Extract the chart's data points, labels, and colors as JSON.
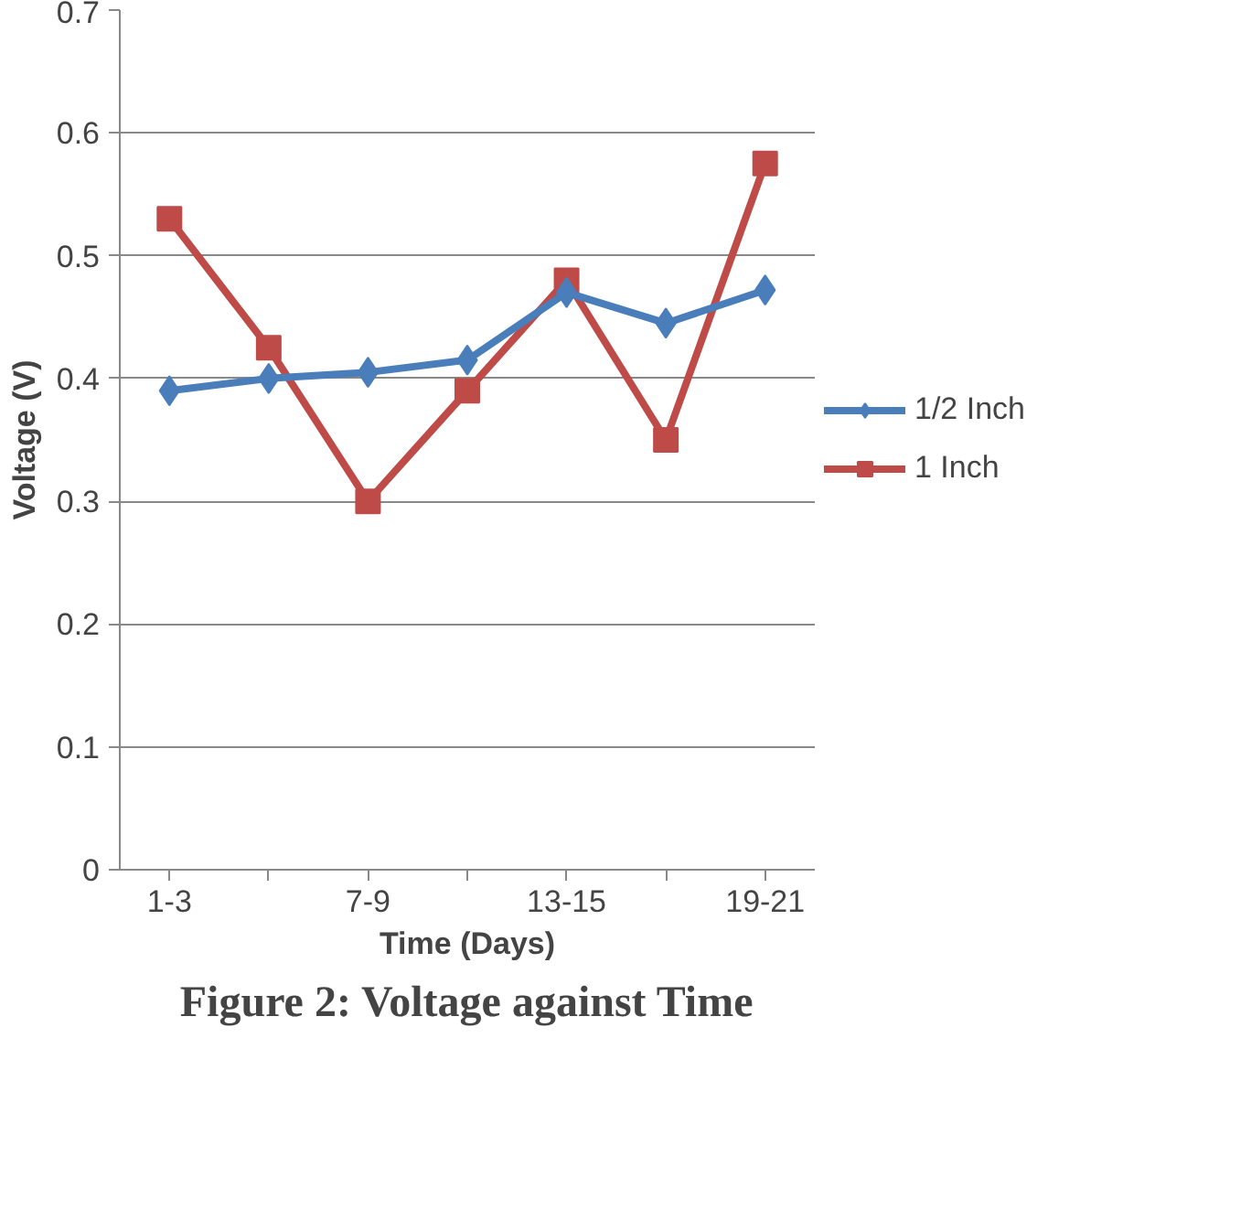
{
  "chart_data": {
    "type": "line",
    "title": "Figure 2: Voltage against Time",
    "xlabel": "Time (Days)",
    "ylabel": "Voltage (V)",
    "categories": [
      "1-3",
      null,
      "7-9",
      null,
      "13-15",
      null,
      "19-21"
    ],
    "series": [
      {
        "name": "1/2 Inch",
        "color": "#4a7ebb",
        "marker": "diamond",
        "values": [
          0.39,
          0.4,
          0.405,
          0.415,
          0.47,
          0.445,
          0.472
        ]
      },
      {
        "name": "1 Inch",
        "color": "#be4b48",
        "marker": "square",
        "values": [
          0.53,
          0.425,
          0.3,
          0.39,
          0.48,
          0.35,
          0.575
        ]
      }
    ],
    "ylim": [
      0,
      0.7
    ],
    "yticks": [
      0,
      0.1,
      0.2,
      0.3,
      0.4,
      0.5,
      0.6,
      0.7
    ],
    "grid": "y",
    "legend": "right",
    "line_style": "solid"
  }
}
